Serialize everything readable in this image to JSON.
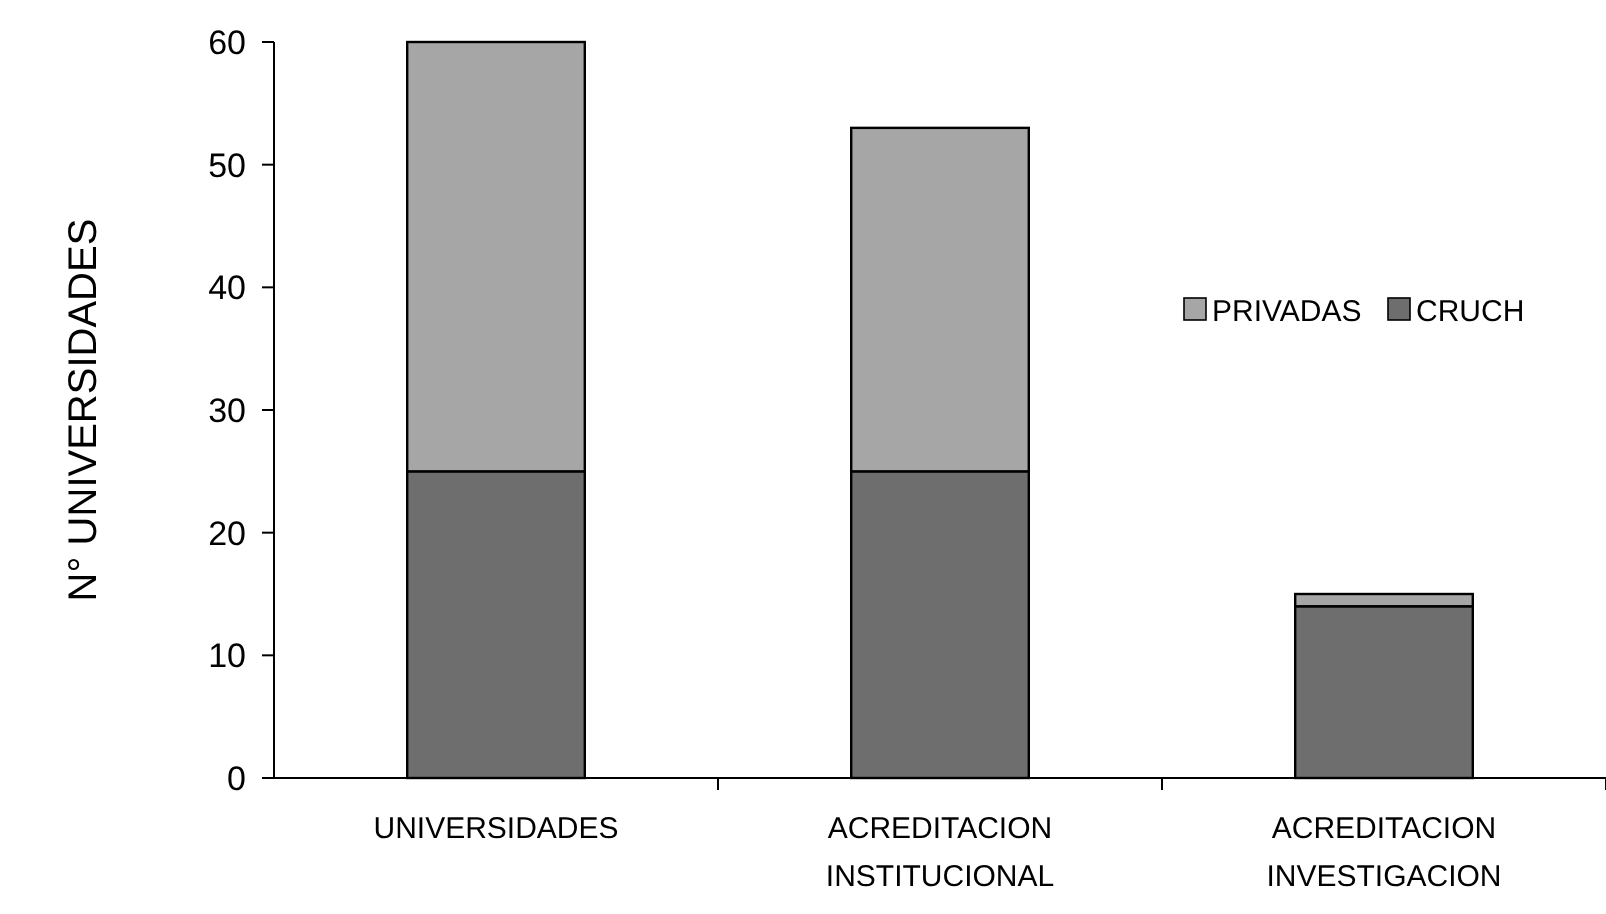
{
  "chart_data": {
    "type": "bar",
    "stacked": true,
    "ylabel": "N° UNIVERSIDADES",
    "categories": [
      "UNIVERSIDADES",
      "ACREDITACION INSTITUCIONAL",
      "ACREDITACION INVESTIGACION"
    ],
    "series": [
      {
        "name": "CRUCH",
        "color": "#6e6e6e",
        "values": [
          25,
          25,
          14
        ]
      },
      {
        "name": "PRIVADAS",
        "color": "#a6a6a6",
        "values": [
          35,
          28,
          1
        ]
      }
    ],
    "ylim": [
      0,
      60
    ],
    "yticks": [
      0,
      10,
      20,
      30,
      40,
      50,
      60
    ],
    "grid": false,
    "legend": "right"
  }
}
